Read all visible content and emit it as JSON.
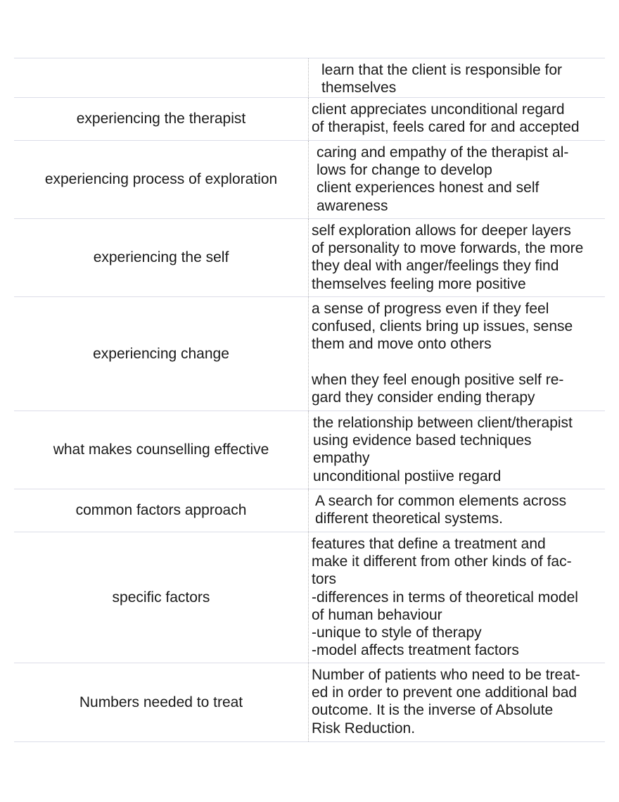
{
  "table": {
    "rows": [
      {
        "definition": [
          [
            "learn that the client is responsible for",
            "themselves"
          ]
        ]
      },
      {
        "term": "experiencing the therapist",
        "definition": [
          [
            "client appreciates unconditional regard",
            "of therapist, feels cared for and accepted"
          ]
        ]
      },
      {
        "term": "experiencing process of exploration",
        "definition": [
          [
            "caring and empathy of the therapist al-",
            "lows for change to develop",
            "client experiences honest and self",
            "awareness"
          ]
        ]
      },
      {
        "term": "experiencing the self",
        "definition": [
          [
            "self exploration allows for deeper layers",
            "of personality to move forwards, the more",
            "they deal with anger/feelings they find",
            "themselves feeling more positive"
          ]
        ]
      },
      {
        "term": "experiencing change",
        "definition": [
          [
            "a sense of progress even if they feel",
            "confused, clients bring up issues, sense",
            "them and move onto others"
          ],
          [
            "when they feel enough positive self re-",
            "gard they consider ending therapy"
          ]
        ]
      },
      {
        "term": "what makes counselling effective",
        "definition": [
          [
            "the relationship between client/therapist",
            "using evidence based techniques",
            "empathy",
            "unconditional postiive regard"
          ]
        ]
      },
      {
        "term": "common factors approach",
        "definition": [
          [
            "A search for common elements across",
            "different theoretical systems."
          ]
        ]
      },
      {
        "term": "specific factors",
        "definition": [
          [
            "features that define a treatment and",
            "make it different from other kinds of fac-",
            "tors",
            "-differences in terms of theoretical model",
            "of human behaviour",
            "-unique to style of therapy",
            "-model affects treatment factors"
          ]
        ]
      },
      {
        "term": "Numbers needed to treat",
        "definition": [
          [
            "Number of patients who need to be treat-",
            "ed in order to prevent one additional bad",
            "outcome. It is the inverse of Absolute",
            "Risk Reduction."
          ]
        ]
      }
    ]
  }
}
